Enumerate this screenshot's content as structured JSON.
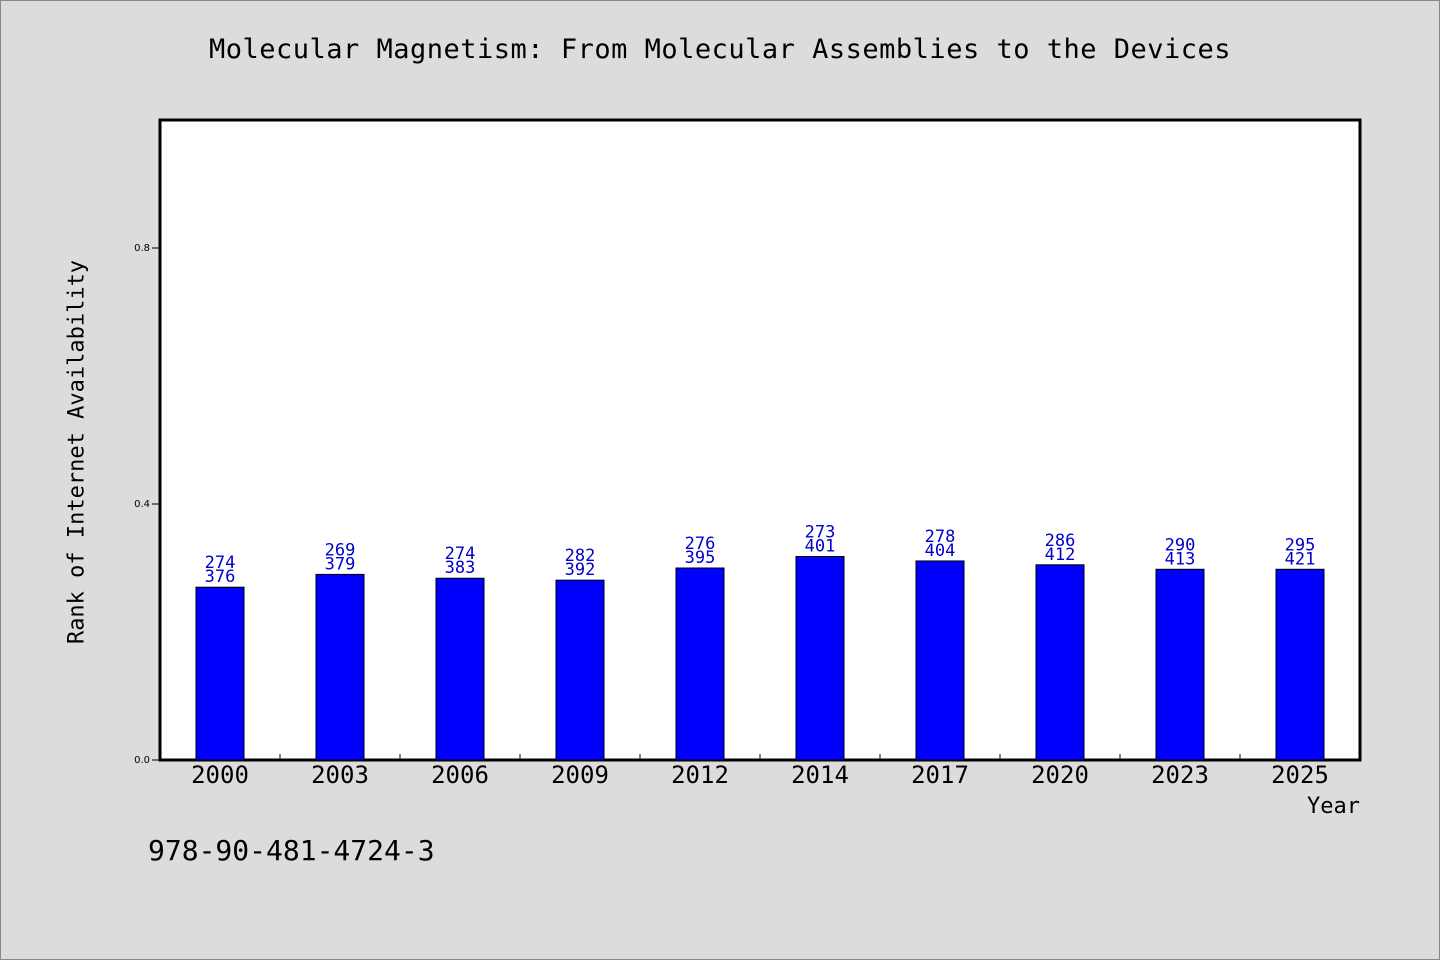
{
  "chart_data": {
    "type": "bar",
    "title": "Molecular Magnetism: From Molecular Assemblies to the Devices",
    "xlabel": "Year",
    "ylabel": "Rank of Internet Availability",
    "categories": [
      "2000",
      "2003",
      "2006",
      "2009",
      "2012",
      "2014",
      "2017",
      "2020",
      "2023",
      "2025"
    ],
    "values": [
      0.27,
      0.29,
      0.284,
      0.281,
      0.3,
      0.318,
      0.311,
      0.305,
      0.298,
      0.298
    ],
    "bar_labels_top": [
      "274",
      "269",
      "274",
      "282",
      "276",
      "273",
      "278",
      "286",
      "290",
      "295"
    ],
    "bar_labels_bottom": [
      "376",
      "379",
      "383",
      "392",
      "395",
      "401",
      "404",
      "412",
      "413",
      "421"
    ],
    "ylim": [
      0,
      1.0
    ],
    "yticks": [
      0.0,
      0.4,
      0.8
    ],
    "ytick_labels": [
      "0.0",
      "0.4",
      "0.8"
    ],
    "bar_color": "#0000ff",
    "label_color": "#0000cc",
    "grid": false,
    "legend": "none"
  },
  "footer": {
    "isbn": "978-90-481-4724-3"
  },
  "colors": {
    "background": "#dcdcdc",
    "plot_background": "#ffffff",
    "axis": "#000000"
  }
}
